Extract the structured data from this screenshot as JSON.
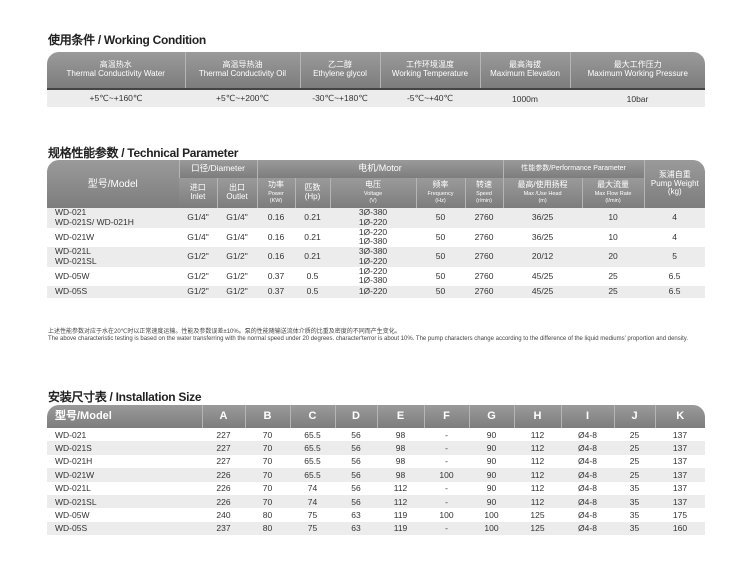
{
  "working": {
    "title": "使用条件 / Working Condition",
    "headers": [
      [
        "高温热水",
        "Thermal Conductivity Water"
      ],
      [
        "高温导热油",
        "Thermal Conductivity Oil"
      ],
      [
        "乙二醇",
        "Ethylene glycol"
      ],
      [
        "工作环境温度",
        "Working Temperature"
      ],
      [
        "最高海拔",
        "Maximum Elevation"
      ],
      [
        "最大工作压力",
        "Maximum Working Pressure"
      ]
    ],
    "values": [
      "+5℃~+160℃",
      "+5℃~+200℃",
      "-30℃~+180℃",
      "-5℃~+40℃",
      "1000m",
      "10bar"
    ]
  },
  "technical": {
    "title": "规格性能参数 / Technical Parameter",
    "h": {
      "model": "型号/Model",
      "diameter": "口径/Diameter",
      "motor": "电机/Motor",
      "perf": "性能参数/Performance Parameter",
      "weight_cn": "泵浦自重",
      "weight_en": "Pump Weight",
      "weight_u": "(kg)",
      "inlet": [
        "进口",
        "Inlet"
      ],
      "outlet": [
        "出口",
        "Outlet"
      ],
      "power": [
        "功率",
        "Power",
        "(KW)"
      ],
      "hp": [
        "匹数",
        "(Hp)"
      ],
      "voltage": [
        "电压",
        "Voltage",
        "(V)"
      ],
      "freq": [
        "频率",
        "Frequency",
        "(Hz)"
      ],
      "speed": [
        "转速",
        "Speed",
        "(r/min)"
      ],
      "head": [
        "最高/使用扬程",
        "Max /Use Head",
        "(m)"
      ],
      "flow": [
        "最大流量",
        "Max Flow Rate",
        "(l/min)"
      ]
    },
    "rows": [
      {
        "model": [
          "WD-021",
          "WD-021S/ WD-021H"
        ],
        "inlet": "G1/4\"",
        "outlet": "G1/4\"",
        "power": "0.16",
        "hp": "0.21",
        "voltage": [
          "3Ø-380",
          "1Ø-220"
        ],
        "freq": "50",
        "speed": "2760",
        "head": "36/25",
        "flow": "10",
        "weight": "4"
      },
      {
        "model": [
          "WD-021W",
          ""
        ],
        "inlet": "G1/4\"",
        "outlet": "G1/4\"",
        "power": "0.16",
        "hp": "0.21",
        "voltage": [
          "1Ø-220",
          "1Ø-380"
        ],
        "freq": "50",
        "speed": "2760",
        "head": "36/25",
        "flow": "10",
        "weight": "4"
      },
      {
        "model": [
          "WD-021L",
          "WD-021SL"
        ],
        "inlet": "G1/2\"",
        "outlet": "G1/2\"",
        "power": "0.16",
        "hp": "0.21",
        "voltage": [
          "3Ø-380",
          "1Ø-220"
        ],
        "freq": "50",
        "speed": "2760",
        "head": "20/12",
        "flow": "20",
        "weight": "5"
      },
      {
        "model": [
          "WD-05W",
          ""
        ],
        "inlet": "G1/2\"",
        "outlet": "G1/2\"",
        "power": "0.37",
        "hp": "0.5",
        "voltage": [
          "1Ø-220",
          "1Ø-380"
        ],
        "freq": "50",
        "speed": "2760",
        "head": "45/25",
        "flow": "25",
        "weight": "6.5"
      },
      {
        "model": [
          "WD-05S",
          ""
        ],
        "inlet": "G1/2\"",
        "outlet": "G1/2\"",
        "power": "0.37",
        "hp": "0.5",
        "voltage": [
          "1Ø-220",
          ""
        ],
        "freq": "50",
        "speed": "2760",
        "head": "45/25",
        "flow": "25",
        "weight": "6.5"
      }
    ],
    "note_cn": "上述性能参数对应于水在20℃时以正常速度运输。性能及参数误差±10%。泵的性能随输送流体介质的比重及密度的不同而产生变化。",
    "note_en": "The above characteristic testing is based on the water transferring with the normal speed under 20 degrees. character'terror is about 10%. The pump characters change according to the difference of the liquid mediums' proportion and density."
  },
  "installation": {
    "title": "安装尺寸表 / Installation Size",
    "headers": [
      "型号/Model",
      "A",
      "B",
      "C",
      "D",
      "E",
      "F",
      "G",
      "H",
      "I",
      "J",
      "K"
    ],
    "rows": [
      [
        "WD-021",
        "227",
        "70",
        "65.5",
        "56",
        "98",
        "-",
        "90",
        "112",
        "Ø4-8",
        "25",
        "137"
      ],
      [
        "WD-021S",
        "227",
        "70",
        "65.5",
        "56",
        "98",
        "-",
        "90",
        "112",
        "Ø4-8",
        "25",
        "137"
      ],
      [
        "WD-021H",
        "227",
        "70",
        "65.5",
        "56",
        "98",
        "-",
        "90",
        "112",
        "Ø4-8",
        "25",
        "137"
      ],
      [
        "WD-021W",
        "226",
        "70",
        "65.5",
        "56",
        "98",
        "100",
        "90",
        "112",
        "Ø4-8",
        "25",
        "137"
      ],
      [
        "WD-021L",
        "226",
        "70",
        "74",
        "56",
        "112",
        "-",
        "90",
        "112",
        "Ø4-8",
        "35",
        "137"
      ],
      [
        "WD-021SL",
        "226",
        "70",
        "74",
        "56",
        "112",
        "-",
        "90",
        "112",
        "Ø4-8",
        "35",
        "137"
      ],
      [
        "WD-05W",
        "240",
        "80",
        "75",
        "63",
        "119",
        "100",
        "100",
        "125",
        "Ø4-8",
        "35",
        "175"
      ],
      [
        "WD-05S",
        "237",
        "80",
        "75",
        "63",
        "119",
        "-",
        "100",
        "125",
        "Ø4-8",
        "35",
        "160"
      ]
    ]
  }
}
